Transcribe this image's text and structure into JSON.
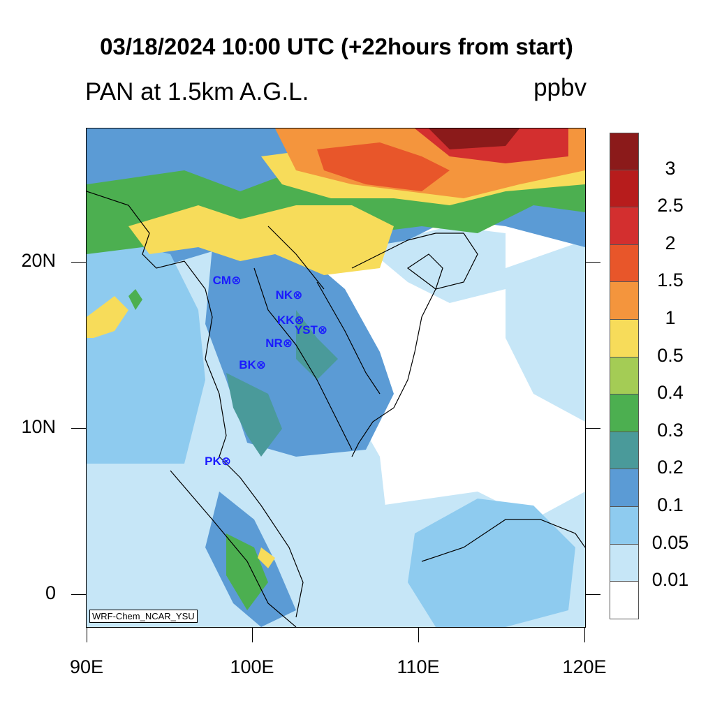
{
  "title": "03/18/2024 10:00 UTC (+22hours from start)",
  "subtitle": "PAN at 1.5km A.G.L.",
  "units": "ppbv",
  "watermark": "WRF-Chem_NCAR_YSU",
  "axes": {
    "lat_labels": [
      "20N",
      "10N",
      "0"
    ],
    "lon_labels": [
      "90E",
      "100E",
      "110E",
      "120E"
    ],
    "lat_range": [
      -2,
      28
    ],
    "lon_range": [
      90,
      120
    ]
  },
  "colorbar": {
    "labels": [
      "3",
      "2.5",
      "2",
      "1.5",
      "1",
      "0.5",
      "0.4",
      "0.3",
      "0.2",
      "0.1",
      "0.05",
      "0.01"
    ],
    "colors": [
      "#8b1a1a",
      "#b71c1c",
      "#d32f2f",
      "#e8562a",
      "#f4953d",
      "#f7dc5a",
      "#a4cc55",
      "#4caf50",
      "#4a9a9a",
      "#5b9bd5",
      "#8ecbef",
      "#c6e6f7",
      "#ffffff"
    ]
  },
  "stations": [
    {
      "code": "CM",
      "lon": 99.0,
      "lat": 18.8
    },
    {
      "code": "NK",
      "lon": 102.7,
      "lat": 17.9
    },
    {
      "code": "KK",
      "lon": 102.8,
      "lat": 16.4
    },
    {
      "code": "YST",
      "lon": 104.2,
      "lat": 15.8
    },
    {
      "code": "NR",
      "lon": 102.1,
      "lat": 15.0
    },
    {
      "code": "BK",
      "lon": 100.5,
      "lat": 13.7
    },
    {
      "code": "PK",
      "lon": 98.4,
      "lat": 7.9
    }
  ],
  "station_marker": "⊗"
}
